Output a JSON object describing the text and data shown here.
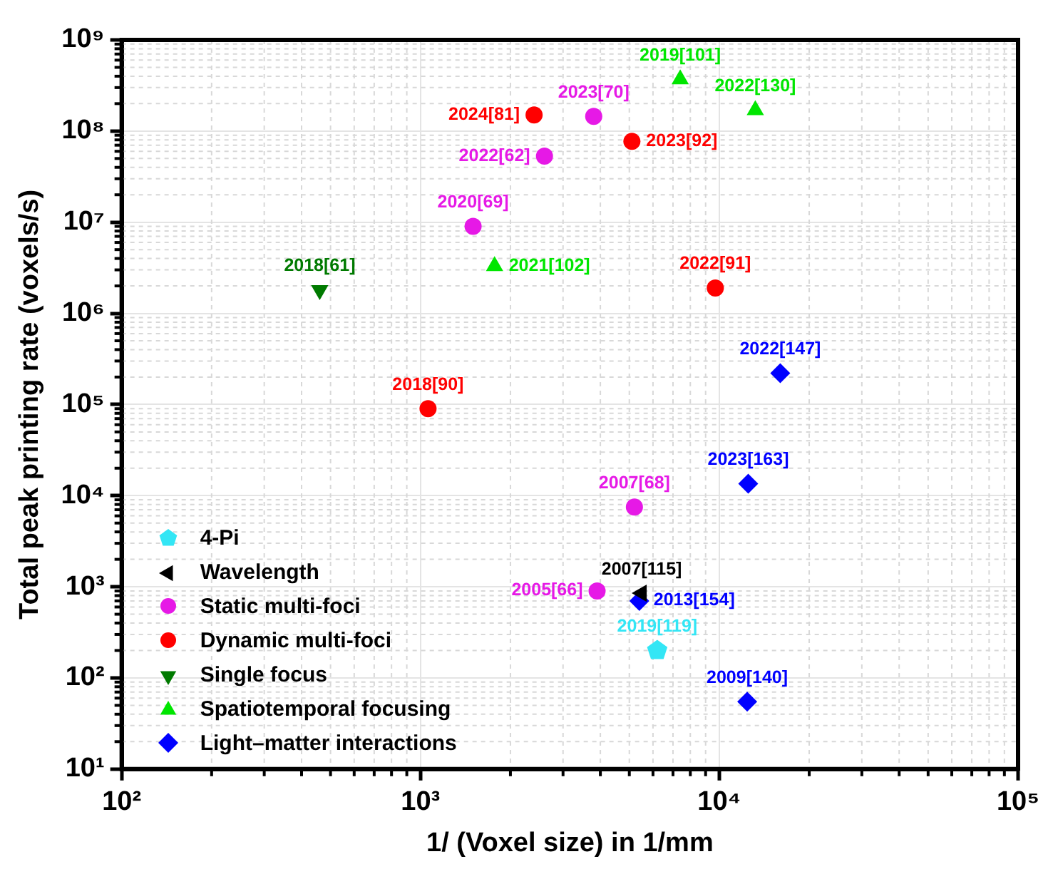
{
  "chart_data": {
    "type": "scatter",
    "xlabel": "1/ (Voxel size) in 1/mm",
    "ylabel": "Total peak printing rate (voxels/s)",
    "log": "xy",
    "grid": true,
    "legend": "bottom left",
    "xlim": [
      100,
      100000
    ],
    "xticks": [
      {
        "value": 100,
        "label": "10²"
      },
      {
        "value": 1000,
        "label": "10³"
      },
      {
        "value": 10000,
        "label": "10⁴"
      },
      {
        "value": 100000,
        "label": "10⁵"
      }
    ],
    "ylim": [
      10,
      1000000000
    ],
    "yticks": [
      {
        "value": 10,
        "label": "10¹"
      },
      {
        "value": 100,
        "label": "10²"
      },
      {
        "value": 1000,
        "label": "10³"
      },
      {
        "value": 10000,
        "label": "10⁴"
      },
      {
        "value": 100000,
        "label": "10⁵"
      },
      {
        "value": 1000000,
        "label": "10⁶"
      },
      {
        "value": 10000000,
        "label": "10⁷"
      },
      {
        "value": 100000000,
        "label": "10⁸"
      },
      {
        "value": 1000000000,
        "label": "10⁹"
      }
    ],
    "series": [
      {
        "name": "4-Pi",
        "color": "#33e6f5",
        "x": [
          6200
        ],
        "values": [
          200
        ]
      },
      {
        "name": "Wavelength",
        "color": "#000000",
        "marker": "triangle-left",
        "x": [
          5500
        ],
        "values": [
          850
        ]
      },
      {
        "name": "Static multi-foci",
        "color": "#e619e6",
        "marker": "circle",
        "x": [
          3900,
          5200,
          1500,
          3800,
          2600
        ],
        "values": [
          900,
          7500,
          9000000,
          145000000,
          53000000
        ]
      },
      {
        "name": "Dynamic multi-foci",
        "color": "#ff0000",
        "marker": "circle",
        "x": [
          1060,
          9700,
          2400,
          5100
        ],
        "values": [
          90000,
          1900000,
          150000000,
          77000000
        ]
      },
      {
        "name": "Single focus",
        "color": "#007a00",
        "marker": "triangle-down",
        "x": [
          460
        ],
        "values": [
          1800000
        ]
      },
      {
        "name": "Spatiotemporal focusing",
        "color": "#00e600",
        "marker": "triangle",
        "x": [
          1770,
          7400,
          13200
        ],
        "values": [
          3300000,
          370000000,
          170000000
        ]
      },
      {
        "name": "Light–matter interactions",
        "color": "#0000ff",
        "marker": "diamond",
        "x": [
          12400,
          5400,
          12500,
          16000
        ],
        "values": [
          55,
          700,
          13500,
          220000
        ]
      }
    ],
    "annotations": [
      {
        "text": "2019[119]",
        "x": 6200,
        "y": 200
      },
      {
        "text": "2007[115]",
        "x": 5500,
        "y": 850
      },
      {
        "text": "2005[66]",
        "x": 3900,
        "y": 900
      },
      {
        "text": "2007[68]",
        "x": 5200,
        "y": 7500
      },
      {
        "text": "2020[69]",
        "x": 1500,
        "y": 9000000
      },
      {
        "text": "2023[70]",
        "x": 3800,
        "y": 145000000
      },
      {
        "text": "2022[62]",
        "x": 2600,
        "y": 53000000
      },
      {
        "text": "2018[90]",
        "x": 1060,
        "y": 90000
      },
      {
        "text": "2022[91]",
        "x": 9700,
        "y": 1900000
      },
      {
        "text": "2024[81]",
        "x": 2400,
        "y": 150000000
      },
      {
        "text": "2023[92]",
        "x": 5100,
        "y": 77000000
      },
      {
        "text": "2018[61]",
        "x": 460,
        "y": 1800000
      },
      {
        "text": "2021[102]",
        "x": 1770,
        "y": 3300000
      },
      {
        "text": "2019[101]",
        "x": 7400,
        "y": 370000000
      },
      {
        "text": "2022[130]",
        "x": 13200,
        "y": 170000000
      },
      {
        "text": "2009[140]",
        "x": 12400,
        "y": 55
      },
      {
        "text": "2013[154]",
        "x": 5400,
        "y": 700
      },
      {
        "text": "2023[163]",
        "x": 12500,
        "y": 13500
      },
      {
        "text": "2022[147]",
        "x": 16000,
        "y": 220000
      }
    ]
  }
}
